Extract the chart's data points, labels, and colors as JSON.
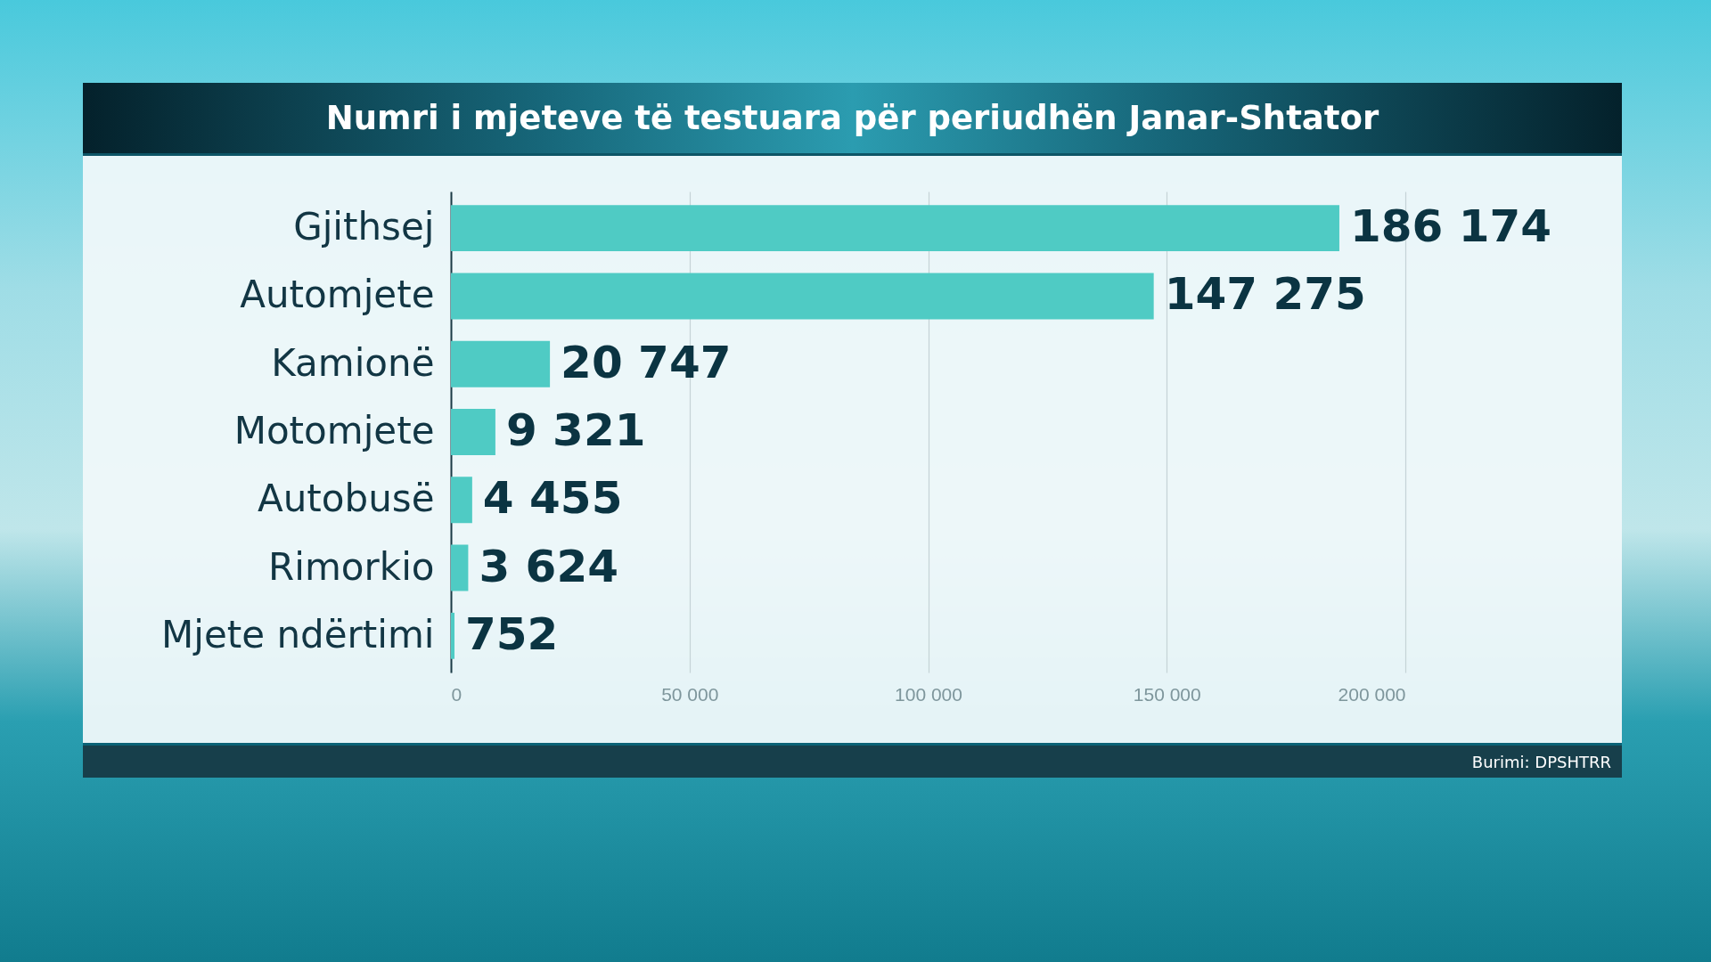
{
  "chart_data": {
    "type": "bar",
    "orientation": "horizontal",
    "title": "Numri i mjeteve të testuara për periudhën Janar-Shtator",
    "categories": [
      "Gjithsej",
      "Automjete",
      "Kamionë",
      "Motomjete",
      "Autobusë",
      "Rimorkio",
      "Mjete ndërtimi"
    ],
    "values": [
      186174,
      147275,
      20747,
      9321,
      4455,
      3624,
      752
    ],
    "value_labels": [
      "186 174",
      "147 275",
      "20 747",
      "9 321",
      "4 455",
      "3 624",
      "752"
    ],
    "color": "#4fcbc4",
    "xlim": [
      0,
      200000
    ],
    "xticks": [
      0,
      {
        "value": 50000,
        "label": "50 000"
      },
      {
        "value": 100000,
        "label": "100 000"
      },
      {
        "value": 150000,
        "label": "150 000"
      },
      {
        "value": 200000,
        "label": "200 000"
      }
    ],
    "grid": "x",
    "annotations": [
      "Burimi: DPSHTRR"
    ]
  }
}
